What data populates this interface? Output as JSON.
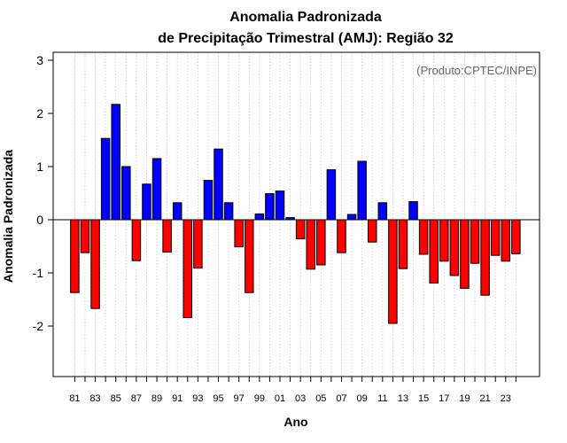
{
  "chart_data": {
    "type": "bar",
    "title": "Anomalia Padronizada",
    "subtitle": "de Precipitação Trimestral (AMJ): Região 32",
    "xlabel": "Ano",
    "ylabel": "Anomalia Padronizada",
    "credit": "(Produto:CPTEC/INPE)",
    "ylim": [
      -2.95,
      3.15
    ],
    "yticks": [
      -2,
      -1,
      0,
      1,
      2,
      3
    ],
    "grid": "vertical dotted",
    "categories": [
      1981,
      1982,
      1983,
      1984,
      1985,
      1986,
      1987,
      1988,
      1989,
      1990,
      1991,
      1992,
      1993,
      1994,
      1995,
      1996,
      1997,
      1998,
      1999,
      2000,
      2001,
      2002,
      2003,
      2004,
      2005,
      2006,
      2007,
      2008,
      2009,
      2010,
      2011,
      2012,
      2013,
      2014,
      2015,
      2016,
      2017,
      2018,
      2019,
      2020,
      2021,
      2022,
      2023,
      2024
    ],
    "x_tick_labels": [
      "81",
      "83",
      "85",
      "87",
      "89",
      "91",
      "93",
      "95",
      "97",
      "99",
      "01",
      "03",
      "05",
      "07",
      "09",
      "11",
      "13",
      "15",
      "17",
      "19",
      "21",
      "23"
    ],
    "values": [
      -1.37,
      -0.62,
      -1.67,
      1.53,
      2.17,
      1.0,
      -0.77,
      0.67,
      1.15,
      -0.61,
      0.32,
      -1.84,
      -0.91,
      0.74,
      1.33,
      0.32,
      -0.51,
      -1.37,
      0.11,
      0.49,
      0.54,
      0.04,
      -0.36,
      -0.93,
      -0.85,
      0.94,
      -0.62,
      0.1,
      1.1,
      -0.42,
      0.32,
      -1.95,
      -0.92,
      0.34,
      -0.65,
      -1.19,
      -0.78,
      -1.05,
      -1.29,
      -0.82,
      -1.42,
      -0.67,
      -0.78,
      -0.64
    ],
    "colors": {
      "positive": "#0000ff",
      "negative": "#ff0000",
      "border": "#000000",
      "grid": "#cccccc"
    }
  }
}
